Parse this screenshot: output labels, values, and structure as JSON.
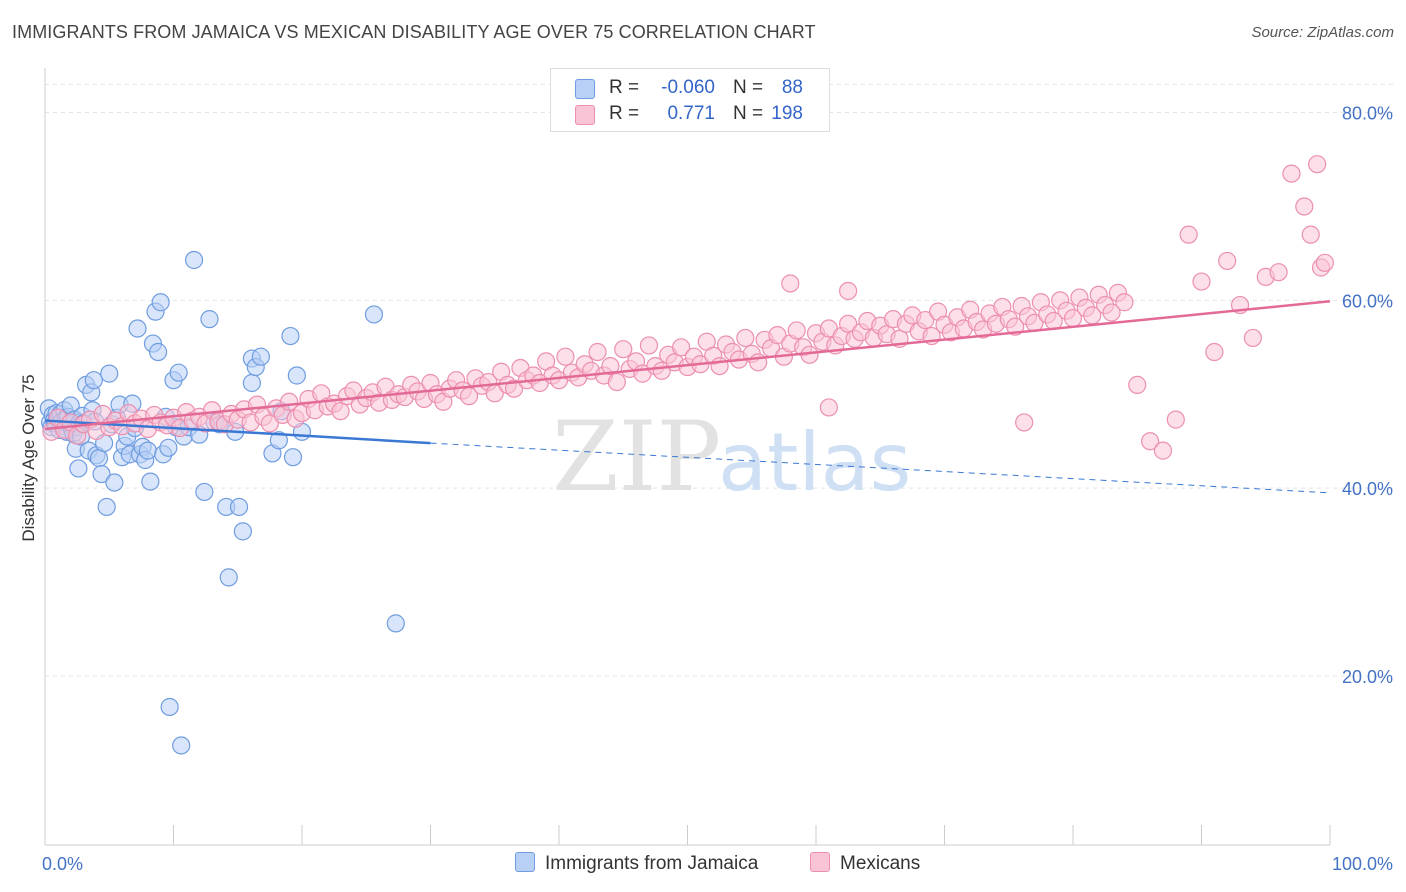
{
  "title": "IMMIGRANTS FROM JAMAICA VS MEXICAN DISABILITY AGE OVER 75 CORRELATION CHART",
  "source": "Source: ZipAtlas.com",
  "watermark": {
    "zip": "ZIP",
    "atlas": "atlas"
  },
  "legend": {
    "r_label": "R =",
    "n_label": "N =",
    "rows": [
      {
        "r": "-0.060",
        "n": "88",
        "fill": "#b8d0f5",
        "stroke": "#6f9de0"
      },
      {
        "r": "0.771",
        "n": "198",
        "fill": "#f9c4d5",
        "stroke": "#ec8fb0"
      }
    ]
  },
  "bottom_legend": [
    {
      "label": "Immigrants from Jamaica",
      "fill": "#b8d0f5",
      "stroke": "#6f9de0"
    },
    {
      "label": "Mexicans",
      "fill": "#f9c4d5",
      "stroke": "#ec8fb0"
    }
  ],
  "chart_data": {
    "type": "scatter",
    "xlabel": "",
    "ylabel": "Disability Age Over 75",
    "xlim": [
      0,
      100
    ],
    "ylim": [
      2,
      84
    ],
    "x_tick_labels": [
      "0.0%",
      "100.0%"
    ],
    "y_ticks": [
      20,
      40,
      60,
      80
    ],
    "y_tick_labels": [
      "20.0%",
      "40.0%",
      "60.0%",
      "80.0%"
    ],
    "grid": true,
    "series": [
      {
        "name": "Immigrants from Jamaica",
        "color": "#6f9de0",
        "fill": "#b8d0f5",
        "trend": {
          "x": [
            0,
            30
          ],
          "y": [
            47.2,
            44.8
          ],
          "dashed_to": [
            100,
            39.5
          ],
          "color": "#3a78d4"
        },
        "points": [
          [
            0.3,
            48.5
          ],
          [
            0.4,
            47.0
          ],
          [
            0.5,
            46.5
          ],
          [
            0.6,
            47.8
          ],
          [
            0.7,
            47.2
          ],
          [
            0.8,
            46.9
          ],
          [
            0.9,
            48.0
          ],
          [
            1.0,
            47.5
          ],
          [
            1.1,
            46.2
          ],
          [
            1.2,
            47.9
          ],
          [
            1.3,
            47.1
          ],
          [
            1.4,
            46.6
          ],
          [
            1.5,
            48.3
          ],
          [
            1.6,
            47.4
          ],
          [
            1.7,
            46.0
          ],
          [
            1.8,
            47.6
          ],
          [
            1.9,
            46.8
          ],
          [
            2.0,
            48.8
          ],
          [
            2.1,
            46.3
          ],
          [
            2.2,
            45.8
          ],
          [
            2.3,
            47.3
          ],
          [
            2.4,
            44.2
          ],
          [
            2.5,
            46.5
          ],
          [
            2.6,
            42.1
          ],
          [
            2.7,
            47.0
          ],
          [
            2.8,
            45.5
          ],
          [
            2.9,
            47.7
          ],
          [
            3.0,
            46.9
          ],
          [
            3.2,
            51.0
          ],
          [
            3.4,
            44.0
          ],
          [
            3.6,
            50.2
          ],
          [
            3.7,
            48.3
          ],
          [
            3.8,
            51.5
          ],
          [
            3.9,
            47.1
          ],
          [
            4.0,
            43.5
          ],
          [
            4.2,
            43.2
          ],
          [
            4.4,
            41.5
          ],
          [
            4.6,
            44.8
          ],
          [
            4.8,
            38.0
          ],
          [
            5.0,
            52.2
          ],
          [
            5.2,
            46.8
          ],
          [
            5.4,
            40.6
          ],
          [
            5.6,
            47.5
          ],
          [
            5.8,
            48.9
          ],
          [
            6.0,
            43.3
          ],
          [
            6.2,
            44.5
          ],
          [
            6.4,
            45.5
          ],
          [
            6.6,
            43.6
          ],
          [
            6.8,
            49.0
          ],
          [
            7.0,
            46.4
          ],
          [
            7.2,
            57.0
          ],
          [
            7.4,
            43.6
          ],
          [
            7.6,
            44.4
          ],
          [
            7.8,
            43.0
          ],
          [
            8.0,
            44.0
          ],
          [
            8.2,
            40.7
          ],
          [
            8.4,
            55.4
          ],
          [
            8.6,
            58.8
          ],
          [
            8.8,
            54.5
          ],
          [
            9.0,
            59.8
          ],
          [
            9.2,
            43.6
          ],
          [
            9.4,
            47.6
          ],
          [
            9.6,
            44.3
          ],
          [
            10.0,
            51.5
          ],
          [
            10.2,
            46.5
          ],
          [
            10.4,
            52.3
          ],
          [
            10.8,
            45.5
          ],
          [
            11.2,
            46.5
          ],
          [
            11.6,
            64.3
          ],
          [
            12.0,
            45.7
          ],
          [
            12.4,
            39.6
          ],
          [
            12.8,
            58.0
          ],
          [
            13.2,
            47.0
          ],
          [
            13.6,
            46.8
          ],
          [
            14.1,
            38.0
          ],
          [
            14.8,
            46.0
          ],
          [
            15.1,
            38.0
          ],
          [
            15.4,
            35.4
          ],
          [
            16.1,
            51.2
          ],
          [
            16.1,
            53.8
          ],
          [
            16.4,
            52.9
          ],
          [
            16.8,
            54.0
          ],
          [
            17.7,
            43.7
          ],
          [
            18.2,
            45.1
          ],
          [
            18.4,
            48.2
          ],
          [
            19.1,
            56.2
          ],
          [
            19.3,
            43.3
          ],
          [
            19.6,
            52.0
          ],
          [
            20.0,
            46.0
          ],
          [
            25.6,
            58.5
          ],
          [
            27.3,
            25.6
          ],
          [
            14.3,
            30.5
          ],
          [
            9.7,
            16.7
          ],
          [
            10.6,
            12.6
          ]
        ]
      },
      {
        "name": "Mexicans",
        "color": "#ec8fb0",
        "fill": "#f9c4d5",
        "trend": {
          "x": [
            0,
            100
          ],
          "y": [
            46.3,
            59.9
          ],
          "color": "#e36a97"
        },
        "points": [
          [
            0.5,
            46.0
          ],
          [
            1.0,
            47.5
          ],
          [
            1.5,
            46.2
          ],
          [
            2.0,
            47.0
          ],
          [
            2.5,
            45.6
          ],
          [
            3.0,
            46.8
          ],
          [
            3.5,
            47.3
          ],
          [
            4.0,
            46.1
          ],
          [
            4.5,
            47.9
          ],
          [
            5.0,
            46.5
          ],
          [
            5.5,
            47.2
          ],
          [
            6.0,
            46.6
          ],
          [
            6.5,
            48.0
          ],
          [
            7.0,
            46.9
          ],
          [
            7.5,
            47.4
          ],
          [
            8.0,
            46.3
          ],
          [
            8.5,
            47.8
          ],
          [
            9.0,
            47.0
          ],
          [
            9.5,
            46.7
          ],
          [
            10.0,
            47.5
          ],
          [
            10.5,
            46.4
          ],
          [
            11.0,
            48.1
          ],
          [
            11.5,
            47.2
          ],
          [
            12.0,
            47.6
          ],
          [
            12.5,
            46.9
          ],
          [
            13.0,
            48.3
          ],
          [
            13.5,
            47.1
          ],
          [
            14.0,
            46.8
          ],
          [
            14.5,
            47.9
          ],
          [
            15.0,
            47.3
          ],
          [
            15.5,
            48.4
          ],
          [
            16.0,
            47.0
          ],
          [
            16.5,
            48.9
          ],
          [
            17.0,
            47.6
          ],
          [
            17.5,
            46.9
          ],
          [
            18.0,
            48.5
          ],
          [
            18.5,
            47.8
          ],
          [
            19.0,
            49.2
          ],
          [
            19.5,
            47.4
          ],
          [
            20.0,
            48.0
          ],
          [
            20.5,
            49.5
          ],
          [
            21.0,
            48.3
          ],
          [
            21.5,
            50.1
          ],
          [
            22.0,
            48.7
          ],
          [
            22.5,
            49.0
          ],
          [
            23.0,
            48.2
          ],
          [
            23.5,
            49.8
          ],
          [
            24.0,
            50.4
          ],
          [
            24.5,
            48.9
          ],
          [
            25.0,
            49.6
          ],
          [
            25.5,
            50.2
          ],
          [
            26.0,
            49.1
          ],
          [
            26.5,
            50.8
          ],
          [
            27.0,
            49.4
          ],
          [
            27.5,
            50.0
          ],
          [
            28.0,
            49.7
          ],
          [
            28.5,
            51.0
          ],
          [
            29.0,
            50.3
          ],
          [
            29.5,
            49.5
          ],
          [
            30.0,
            51.2
          ],
          [
            30.5,
            50.0
          ],
          [
            31.0,
            49.2
          ],
          [
            31.5,
            50.6
          ],
          [
            32.0,
            51.5
          ],
          [
            32.5,
            50.4
          ],
          [
            33.0,
            49.8
          ],
          [
            33.5,
            51.7
          ],
          [
            34.0,
            50.9
          ],
          [
            34.5,
            51.3
          ],
          [
            35.0,
            50.1
          ],
          [
            35.5,
            52.4
          ],
          [
            36.0,
            51.0
          ],
          [
            36.5,
            50.6
          ],
          [
            37.0,
            52.8
          ],
          [
            37.5,
            51.5
          ],
          [
            38.0,
            52.0
          ],
          [
            38.5,
            51.2
          ],
          [
            39.0,
            53.5
          ],
          [
            39.5,
            52.0
          ],
          [
            40.0,
            51.5
          ],
          [
            40.5,
            54.0
          ],
          [
            41.0,
            52.3
          ],
          [
            41.5,
            51.8
          ],
          [
            42.0,
            53.2
          ],
          [
            42.5,
            52.5
          ],
          [
            43.0,
            54.5
          ],
          [
            43.5,
            52.0
          ],
          [
            44.0,
            53.0
          ],
          [
            44.5,
            51.3
          ],
          [
            45.0,
            54.8
          ],
          [
            45.5,
            52.7
          ],
          [
            46.0,
            53.5
          ],
          [
            46.5,
            52.2
          ],
          [
            47.0,
            55.2
          ],
          [
            47.5,
            53.0
          ],
          [
            48.0,
            52.5
          ],
          [
            48.5,
            54.2
          ],
          [
            49.0,
            53.4
          ],
          [
            49.5,
            55.0
          ],
          [
            50.0,
            52.9
          ],
          [
            50.5,
            54.0
          ],
          [
            51.0,
            53.2
          ],
          [
            51.5,
            55.6
          ],
          [
            52.0,
            54.1
          ],
          [
            52.5,
            53.0
          ],
          [
            53.0,
            55.3
          ],
          [
            53.5,
            54.5
          ],
          [
            54.0,
            53.7
          ],
          [
            54.5,
            56.0
          ],
          [
            55.0,
            54.3
          ],
          [
            55.5,
            53.4
          ],
          [
            56.0,
            55.8
          ],
          [
            56.5,
            54.9
          ],
          [
            57.0,
            56.3
          ],
          [
            57.5,
            54.0
          ],
          [
            58.0,
            55.4
          ],
          [
            58.5,
            56.8
          ],
          [
            59.0,
            55.0
          ],
          [
            59.5,
            54.2
          ],
          [
            60.0,
            56.5
          ],
          [
            60.5,
            55.6
          ],
          [
            61.0,
            57.0
          ],
          [
            61.5,
            55.2
          ],
          [
            62.0,
            56.2
          ],
          [
            62.5,
            57.5
          ],
          [
            63.0,
            55.9
          ],
          [
            63.5,
            56.6
          ],
          [
            64.0,
            57.8
          ],
          [
            64.5,
            56.0
          ],
          [
            65.0,
            57.3
          ],
          [
            65.5,
            56.4
          ],
          [
            66.0,
            58.0
          ],
          [
            66.5,
            55.9
          ],
          [
            67.0,
            57.5
          ],
          [
            67.5,
            58.4
          ],
          [
            68.0,
            56.7
          ],
          [
            68.5,
            57.9
          ],
          [
            69.0,
            56.2
          ],
          [
            69.5,
            58.8
          ],
          [
            70.0,
            57.4
          ],
          [
            70.5,
            56.6
          ],
          [
            71.0,
            58.2
          ],
          [
            71.5,
            57.0
          ],
          [
            72.0,
            59.0
          ],
          [
            72.5,
            57.7
          ],
          [
            73.0,
            56.9
          ],
          [
            73.5,
            58.6
          ],
          [
            74.0,
            57.5
          ],
          [
            74.5,
            59.3
          ],
          [
            75.0,
            58.0
          ],
          [
            75.5,
            57.2
          ],
          [
            76.0,
            59.4
          ],
          [
            76.5,
            58.3
          ],
          [
            77.0,
            57.6
          ],
          [
            77.5,
            59.8
          ],
          [
            78.0,
            58.5
          ],
          [
            78.5,
            57.8
          ],
          [
            79.0,
            60.0
          ],
          [
            79.5,
            58.9
          ],
          [
            80.0,
            58.1
          ],
          [
            80.5,
            60.3
          ],
          [
            81.0,
            59.2
          ],
          [
            81.5,
            58.4
          ],
          [
            82.0,
            60.6
          ],
          [
            82.5,
            59.5
          ],
          [
            83.0,
            58.7
          ],
          [
            83.5,
            60.8
          ],
          [
            84.0,
            59.8
          ],
          [
            85.0,
            51.0
          ],
          [
            86.0,
            45.0
          ],
          [
            87.0,
            44.0
          ],
          [
            88.0,
            47.3
          ],
          [
            89.0,
            67.0
          ],
          [
            90.0,
            62.0
          ],
          [
            91.0,
            54.5
          ],
          [
            92.0,
            64.2
          ],
          [
            93.0,
            59.5
          ],
          [
            94.0,
            56.0
          ],
          [
            95.0,
            62.5
          ],
          [
            96.0,
            63.0
          ],
          [
            97.0,
            73.5
          ],
          [
            98.0,
            70.0
          ],
          [
            98.5,
            67.0
          ],
          [
            99.0,
            74.5
          ],
          [
            99.3,
            63.5
          ],
          [
            99.6,
            64.0
          ],
          [
            58.0,
            61.8
          ],
          [
            62.5,
            61.0
          ],
          [
            76.2,
            47.0
          ],
          [
            61.0,
            48.6
          ]
        ]
      }
    ]
  }
}
